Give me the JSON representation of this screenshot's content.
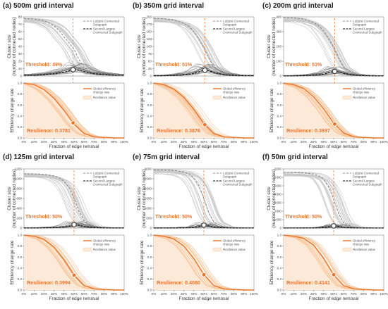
{
  "chart_data": [
    {
      "type": "line",
      "panel_title": "(a) 500m grid interval",
      "top_plot": {
        "ylabel_lines": [
          "Cluster size",
          "(number of connected nodes)"
        ],
        "ylim": [
          0,
          80
        ],
        "yticks": [
          "0",
          "10",
          "20",
          "30",
          "40",
          "50",
          "60",
          "70",
          "80"
        ],
        "series": [
          {
            "name": "Largest Connected Subgraph",
            "x": [
              0,
              10,
              20,
              30,
              35,
              40,
              45,
              50,
              55,
              60,
              70,
              80,
              90,
              100
            ],
            "y": [
              78,
              77,
              75,
              68,
              62,
              53,
              45,
              36,
              22,
              12,
              4,
              2,
              1,
              1
            ]
          },
          {
            "name": "Second Largest Connected Subgraph",
            "x": [
              0,
              10,
              20,
              30,
              40,
              45,
              50,
              55,
              60,
              70,
              80,
              90,
              100
            ],
            "y": [
              1,
              1,
              2,
              3,
              5,
              7,
              9,
              8,
              6,
              3,
              2,
              1,
              1
            ]
          }
        ],
        "threshold_label": "Threshold: 49%",
        "threshold_x": 49
      },
      "bottom_plot": {
        "ylabel": "Efficiency change rate",
        "ylim": [
          0,
          1.0
        ],
        "yticks": [
          "0.0",
          "0.2",
          "0.4",
          "0.6",
          "0.8",
          "1.0"
        ],
        "series": [
          {
            "name": "Global efficiency change rate",
            "x": [
              0,
              10,
              20,
              30,
              40,
              50,
              60,
              70,
              80,
              90,
              100
            ],
            "y": [
              1.0,
              0.97,
              0.88,
              0.72,
              0.5,
              0.25,
              0.08,
              0.02,
              0.01,
              0,
              0
            ]
          }
        ],
        "area_legend": "Resilience value",
        "resilience_label": "Resilience: 0.3781"
      }
    },
    {
      "type": "line",
      "panel_title": "(b) 350m grid interval",
      "top_plot": {
        "ylabel_lines": [
          "Cluster size",
          "(number of connected nodes)"
        ],
        "ylim": [
          0,
          200
        ],
        "yticks": [
          "0",
          "25",
          "50",
          "75",
          "100",
          "125",
          "150",
          "175",
          "200"
        ],
        "series": [
          {
            "name": "Largest Connected Subgraph",
            "x": [
              0,
              10,
              20,
              30,
              35,
              40,
              45,
              50,
              55,
              60,
              70,
              80,
              90,
              100
            ],
            "y": [
              195,
              194,
              190,
              178,
              168,
              150,
              125,
              95,
              60,
              30,
              8,
              3,
              1,
              1
            ]
          },
          {
            "name": "Second Largest Connected Subgraph",
            "x": [
              0,
              10,
              20,
              30,
              40,
              45,
              50,
              55,
              60,
              70,
              80,
              90,
              100
            ],
            "y": [
              1,
              1,
              2,
              4,
              8,
              14,
              20,
              18,
              12,
              5,
              2,
              1,
              1
            ]
          }
        ],
        "threshold_label": "Threshold: 51%",
        "threshold_x": 51
      },
      "bottom_plot": {
        "ylabel": "Efficiency change rate",
        "ylim": [
          0,
          1.0
        ],
        "yticks": [
          "0.0",
          "0.2",
          "0.4",
          "0.6",
          "0.8",
          "1.0"
        ],
        "series": [
          {
            "name": "Global efficiency change rate",
            "x": [
              0,
              10,
              20,
              30,
              40,
              50,
              60,
              70,
              80,
              90,
              100
            ],
            "y": [
              1.0,
              0.97,
              0.89,
              0.74,
              0.52,
              0.26,
              0.08,
              0.02,
              0.01,
              0,
              0
            ]
          }
        ],
        "area_legend": "Resilience value",
        "resilience_label": "Resilience: 0.3876"
      }
    },
    {
      "type": "line",
      "panel_title": "(c) 200m grid interval",
      "top_plot": {
        "ylabel_lines": [
          "Cluster size",
          "(number of connected nodes)"
        ],
        "ylim": [
          0,
          400
        ],
        "yticks": [
          "0",
          "100",
          "200",
          "300",
          "400"
        ],
        "series": [
          {
            "name": "Largest Connected Subgraph",
            "x": [
              0,
              10,
              20,
              30,
              35,
              40,
              45,
              50,
              55,
              60,
              70,
              80,
              90,
              100
            ],
            "y": [
              395,
              393,
              385,
              362,
              340,
              305,
              255,
              195,
              120,
              60,
              15,
              5,
              2,
              1
            ]
          },
          {
            "name": "Second Largest Connected Subgraph",
            "x": [
              0,
              10,
              20,
              30,
              40,
              45,
              50,
              55,
              60,
              70,
              80,
              90,
              100
            ],
            "y": [
              1,
              1,
              3,
              6,
              12,
              22,
              32,
              28,
              18,
              7,
              3,
              1,
              1
            ]
          }
        ],
        "threshold_label": "Threshold: 51%",
        "threshold_x": 51
      },
      "bottom_plot": {
        "ylabel": "Efficiency change rate",
        "ylim": [
          0,
          1.0
        ],
        "yticks": [
          "0.0",
          "0.2",
          "0.4",
          "0.6",
          "0.8",
          "1.0"
        ],
        "series": [
          {
            "name": "Global efficiency change rate",
            "x": [
              0,
              10,
              20,
              30,
              40,
              50,
              60,
              70,
              80,
              90,
              100
            ],
            "y": [
              1.0,
              0.97,
              0.9,
              0.75,
              0.53,
              0.27,
              0.09,
              0.02,
              0.01,
              0,
              0
            ]
          }
        ],
        "area_legend": "Resilience value",
        "resilience_label": "Resilience: 0.3937"
      }
    },
    {
      "type": "line",
      "panel_title": "(d) 125m grid interval",
      "top_plot": {
        "ylabel_lines": [
          "Cluster size",
          "(number of connected nodes)"
        ],
        "ylim": [
          0,
          1200
        ],
        "yticks": [
          "0",
          "200",
          "400",
          "600",
          "800",
          "1000",
          "1200"
        ],
        "series": [
          {
            "name": "Largest Connected Subgraph",
            "x": [
              0,
              10,
              20,
              30,
              35,
              40,
              45,
              50,
              55,
              60,
              70,
              80,
              90,
              100
            ],
            "y": [
              1100,
              1098,
              1090,
              1060,
              1020,
              950,
              820,
              600,
              330,
              150,
              30,
              8,
              2,
              1
            ]
          },
          {
            "name": "Second Largest Connected Subgraph",
            "x": [
              0,
              10,
              20,
              30,
              40,
              45,
              50,
              55,
              60,
              70,
              80,
              90,
              100
            ],
            "y": [
              1,
              2,
              4,
              8,
              18,
              40,
              70,
              55,
              30,
              10,
              3,
              1,
              1
            ]
          }
        ],
        "threshold_label": "Threshold: 50%",
        "threshold_x": 50
      },
      "bottom_plot": {
        "ylabel": "Efficiency change rate",
        "ylim": [
          0,
          1.0
        ],
        "yticks": [
          "0.0",
          "0.2",
          "0.4",
          "0.6",
          "0.8",
          "1.0"
        ],
        "series": [
          {
            "name": "Global efficiency change rate",
            "x": [
              0,
              10,
              20,
              30,
              40,
              50,
              60,
              70,
              80,
              90,
              100
            ],
            "y": [
              1.0,
              0.98,
              0.92,
              0.78,
              0.55,
              0.27,
              0.08,
              0.02,
              0.01,
              0,
              0
            ]
          }
        ],
        "area_legend": "Resilience value",
        "resilience_label": "Resilience: 0.3994"
      }
    },
    {
      "type": "line",
      "panel_title": "(e) 75m grid interval",
      "top_plot": {
        "ylabel_lines": [
          "Cluster size",
          "(number of connected nodes)"
        ],
        "ylim": [
          0,
          3000
        ],
        "yticks": [
          "0",
          "500",
          "1000",
          "1500",
          "2000",
          "2500",
          "3000"
        ],
        "series": [
          {
            "name": "Largest Connected Subgraph",
            "x": [
              0,
              10,
              20,
              30,
              35,
              40,
              45,
              50,
              55,
              60,
              70,
              80,
              90,
              100
            ],
            "y": [
              2950,
              2945,
              2920,
              2850,
              2750,
              2550,
              2150,
              1500,
              750,
              300,
              50,
              10,
              3,
              1
            ]
          },
          {
            "name": "Second Largest Connected Subgraph",
            "x": [
              0,
              10,
              20,
              30,
              40,
              45,
              50,
              55,
              60,
              70,
              80,
              90,
              100
            ],
            "y": [
              1,
              2,
              5,
              12,
              30,
              80,
              150,
              110,
              50,
              15,
              4,
              1,
              1
            ]
          }
        ],
        "threshold_label": "Threshold: 50%",
        "threshold_x": 50
      },
      "bottom_plot": {
        "ylabel": "Efficiency change rate",
        "ylim": [
          0,
          1.0
        ],
        "yticks": [
          "0.0",
          "0.2",
          "0.4",
          "0.6",
          "0.8",
          "1.0"
        ],
        "series": [
          {
            "name": "Global efficiency change rate",
            "x": [
              0,
              10,
              20,
              30,
              40,
              50,
              60,
              70,
              80,
              90,
              100
            ],
            "y": [
              1.0,
              0.98,
              0.93,
              0.8,
              0.57,
              0.28,
              0.08,
              0.02,
              0.01,
              0,
              0
            ]
          }
        ],
        "area_legend": "Resilience value",
        "resilience_label": "Resilience: 0.4080"
      }
    },
    {
      "type": "line",
      "panel_title": "(f) 50m grid interval",
      "top_plot": {
        "ylabel_lines": [
          "Cluster size",
          "(number of connected nodes)"
        ],
        "ylim": [
          0,
          7000
        ],
        "yticks": [
          "0",
          "1000",
          "2000",
          "3000",
          "4000",
          "5000",
          "6000",
          "7000"
        ],
        "series": [
          {
            "name": "Largest Connected Subgraph",
            "x": [
              0,
              10,
              20,
              30,
              35,
              40,
              45,
              50,
              55,
              60,
              70,
              80,
              90,
              100
            ],
            "y": [
              6600,
              6590,
              6550,
              6400,
              6200,
              5800,
              4900,
              3400,
              1700,
              600,
              100,
              20,
              5,
              1
            ]
          },
          {
            "name": "Second Largest Connected Subgraph",
            "x": [
              0,
              10,
              20,
              30,
              40,
              45,
              50,
              55,
              60,
              70,
              80,
              90,
              100
            ],
            "y": [
              1,
              2,
              6,
              15,
              40,
              120,
              260,
              190,
              80,
              20,
              5,
              1,
              1
            ]
          }
        ],
        "threshold_label": "Threshold: 50%",
        "threshold_x": 50
      },
      "bottom_plot": {
        "ylabel": "Efficiency change rate",
        "ylim": [
          0,
          1.0
        ],
        "yticks": [
          "0.0",
          "0.2",
          "0.4",
          "0.6",
          "0.8",
          "1.0"
        ],
        "series": [
          {
            "name": "Global efficiency change rate",
            "x": [
              0,
              10,
              20,
              30,
              40,
              50,
              60,
              70,
              80,
              90,
              100
            ],
            "y": [
              1.0,
              0.98,
              0.94,
              0.82,
              0.58,
              0.28,
              0.08,
              0.02,
              0.01,
              0,
              0
            ]
          }
        ],
        "area_legend": "Resilience value",
        "resilience_label": "Resilience: 0.4141"
      }
    }
  ],
  "xlabel": "Fraction of edge removal",
  "xticks": [
    "0%",
    "10%",
    "20%",
    "30%",
    "40%",
    "50%",
    "60%",
    "70%",
    "80%",
    "90%",
    "100%"
  ],
  "legend_top": {
    "largest_lines": [
      "Largest Connected",
      "Subgraph"
    ],
    "second_lines": [
      "Second Largest",
      "Connected Subgraph"
    ]
  },
  "legend_bottom": {
    "efficiency_lines": [
      "Global efficiency",
      "change rate"
    ],
    "resilience": "Resilience value"
  },
  "colors": {
    "orange": "#e8742a",
    "orange_light": "#f6c9a0",
    "area_fill": "#fde9d7",
    "gray_ensemble": "#c8c8c8",
    "gray_dark": "#555555"
  }
}
